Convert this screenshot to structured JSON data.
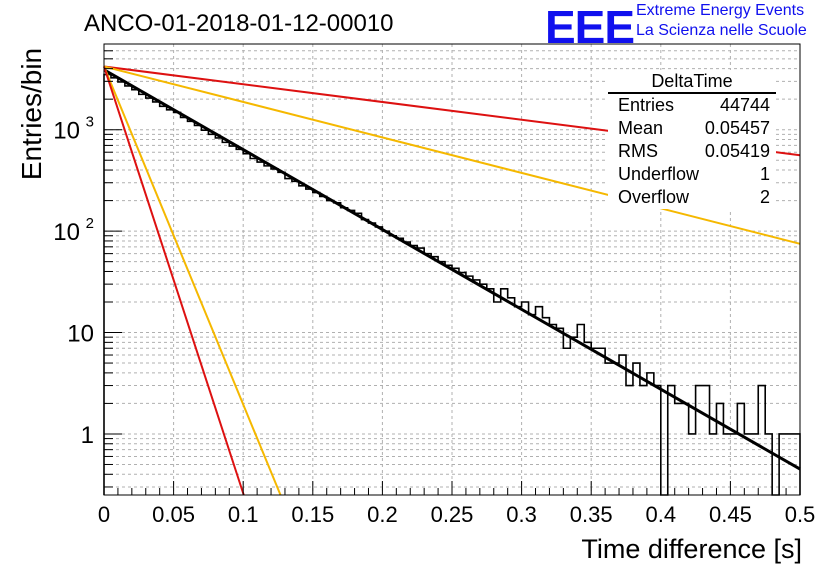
{
  "title": "ANCO-01-2018-01-12-00010",
  "logo": {
    "text": "EEE",
    "line1": "Extreme Energy Events",
    "line2": "La Scienza nelle Scuole"
  },
  "stats": {
    "name": "DeltaTime",
    "rows": [
      {
        "label": "Entries",
        "value": "44744"
      },
      {
        "label": "Mean",
        "value": "0.05457"
      },
      {
        "label": "RMS",
        "value": "0.05419"
      },
      {
        "label": "Underflow",
        "value": "1"
      },
      {
        "label": "Overflow",
        "value": "2"
      }
    ]
  },
  "chart_data": {
    "type": "line",
    "title": "ANCO-01-2018-01-12-00010",
    "xlabel": "Time difference [s]",
    "ylabel": "Entries/bin",
    "xlim": [
      0,
      0.5
    ],
    "ylim": [
      0.25,
      7000
    ],
    "yscale": "log",
    "grid": true,
    "x_ticks": [
      "0",
      "0.05",
      "0.1",
      "0.15",
      "0.2",
      "0.25",
      "0.3",
      "0.35",
      "0.4",
      "0.45",
      "0.5"
    ],
    "y_ticks": [
      {
        "value": 1,
        "label": "1"
      },
      {
        "value": 10,
        "label": "10"
      },
      {
        "value": 100,
        "label": "10",
        "exp": "2"
      },
      {
        "value": 1000,
        "label": "10",
        "exp": "3"
      }
    ],
    "histogram": {
      "name": "DeltaTime",
      "bin_width": 0.005,
      "color": "#000000",
      "counts": [
        3500,
        3250,
        2960,
        2700,
        2480,
        2230,
        2050,
        1880,
        1700,
        1570,
        1480,
        1320,
        1210,
        1100,
        990,
        900,
        830,
        750,
        690,
        640,
        580,
        520,
        480,
        440,
        410,
        380,
        330,
        310,
        280,
        260,
        240,
        220,
        200,
        190,
        170,
        160,
        150,
        130,
        120,
        110,
        100,
        90,
        85,
        78,
        72,
        68,
        60,
        56,
        50,
        46,
        43,
        39,
        36,
        33,
        30,
        27,
        20,
        27,
        22,
        18,
        20,
        15,
        18,
        14,
        12,
        11,
        7,
        9,
        12,
        8,
        7,
        7,
        5,
        5,
        6,
        3,
        5,
        3,
        4,
        3,
        0,
        3,
        2,
        2,
        1,
        3,
        3,
        1,
        2,
        1,
        1,
        2,
        1,
        1,
        3,
        1,
        0,
        1,
        1,
        1
      ]
    },
    "fits": [
      {
        "color": "#000000",
        "x": [
          0,
          0.5
        ],
        "y": [
          3900,
          0.45
        ]
      },
      {
        "color": "#dd1111",
        "x": [
          0,
          0.5
        ],
        "y": [
          4200,
          560
        ]
      },
      {
        "color": "#f5b800",
        "x": [
          0,
          0.5
        ],
        "y": [
          4200,
          75
        ]
      },
      {
        "color": "#f5b800",
        "x": [
          0,
          0.1268
        ],
        "y": [
          4200,
          0.25
        ]
      },
      {
        "color": "#dd1111",
        "x": [
          0,
          0.1004
        ],
        "y": [
          4200,
          0.25
        ]
      }
    ]
  }
}
